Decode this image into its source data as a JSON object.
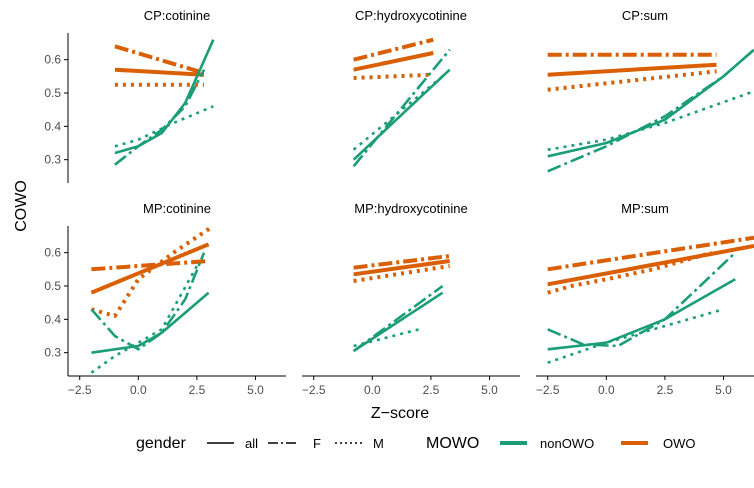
{
  "colors": {
    "nonOWO": "#1b9e77",
    "OWO": "#d95f02",
    "axis": "#000000",
    "tick_text": "#4d4d4d"
  },
  "chart_data": {
    "type": "line",
    "xlabel": "Z−score",
    "ylabel": "COWO",
    "xlim": [
      -3.0,
      6.3
    ],
    "ylim": [
      0.23,
      0.68
    ],
    "x_ticks": [
      -2.5,
      0.0,
      2.5,
      5.0
    ],
    "x_tick_labels": [
      "−2.5",
      "0.0",
      "2.5",
      "5.0"
    ],
    "y_ticks": [
      0.3,
      0.4,
      0.5,
      0.6
    ],
    "y_tick_labels": [
      "0.3",
      "0.4",
      "0.5",
      "0.6"
    ],
    "grid": false,
    "legend": {
      "placement": "bottom",
      "gender_title": "gender",
      "gender_items": [
        "all",
        "F",
        "M"
      ],
      "mowo_title": "MOWO",
      "mowo_items": [
        "nonOWO",
        "OWO"
      ]
    },
    "panels": [
      {
        "title": "CP:cotinine",
        "series": [
          {
            "group": "OWO",
            "gender": "all",
            "x": [
              -1.0,
              2.8
            ],
            "y": [
              0.57,
              0.555
            ]
          },
          {
            "group": "OWO",
            "gender": "F",
            "x": [
              -1.0,
              2.8
            ],
            "y": [
              0.64,
              0.56
            ]
          },
          {
            "group": "OWO",
            "gender": "M",
            "x": [
              -1.0,
              2.8
            ],
            "y": [
              0.525,
              0.525
            ]
          },
          {
            "group": "nonOWO",
            "gender": "all",
            "x": [
              -1.0,
              0.0,
              1.0,
              2.0,
              3.2
            ],
            "y": [
              0.32,
              0.34,
              0.38,
              0.47,
              0.66
            ]
          },
          {
            "group": "nonOWO",
            "gender": "F",
            "x": [
              -1.0,
              0.0,
              1.0,
              2.0,
              2.8
            ],
            "y": [
              0.285,
              0.34,
              0.39,
              0.46,
              0.57
            ]
          },
          {
            "group": "nonOWO",
            "gender": "M",
            "x": [
              -1.0,
              0.0,
              1.5,
              3.2
            ],
            "y": [
              0.34,
              0.36,
              0.41,
              0.46
            ]
          }
        ]
      },
      {
        "title": "CP:hydroxycotinine",
        "series": [
          {
            "group": "OWO",
            "gender": "all",
            "x": [
              -0.8,
              2.6
            ],
            "y": [
              0.57,
              0.62
            ]
          },
          {
            "group": "OWO",
            "gender": "F",
            "x": [
              -0.8,
              2.6
            ],
            "y": [
              0.6,
              0.66
            ]
          },
          {
            "group": "OWO",
            "gender": "M",
            "x": [
              -0.8,
              2.6
            ],
            "y": [
              0.545,
              0.555
            ]
          },
          {
            "group": "nonOWO",
            "gender": "all",
            "x": [
              -0.8,
              3.3
            ],
            "y": [
              0.3,
              0.57
            ]
          },
          {
            "group": "nonOWO",
            "gender": "F",
            "x": [
              -0.8,
              3.3
            ],
            "y": [
              0.28,
              0.63
            ]
          },
          {
            "group": "nonOWO",
            "gender": "M",
            "x": [
              -0.8,
              3.0
            ],
            "y": [
              0.33,
              0.55
            ]
          }
        ]
      },
      {
        "title": "CP:sum",
        "series": [
          {
            "group": "OWO",
            "gender": "all",
            "x": [
              -2.5,
              4.7
            ],
            "y": [
              0.555,
              0.585
            ]
          },
          {
            "group": "OWO",
            "gender": "F",
            "x": [
              -2.5,
              4.7
            ],
            "y": [
              0.615,
              0.615
            ]
          },
          {
            "group": "OWO",
            "gender": "M",
            "x": [
              -2.5,
              4.7
            ],
            "y": [
              0.51,
              0.565
            ]
          },
          {
            "group": "nonOWO",
            "gender": "all",
            "x": [
              -2.5,
              0.0,
              2.5,
              5.0,
              6.3
            ],
            "y": [
              0.31,
              0.35,
              0.42,
              0.55,
              0.63
            ]
          },
          {
            "group": "nonOWO",
            "gender": "F",
            "x": [
              -2.5,
              0.0,
              2.5,
              5.0,
              6.3
            ],
            "y": [
              0.265,
              0.34,
              0.43,
              0.55,
              0.63
            ]
          },
          {
            "group": "nonOWO",
            "gender": "M",
            "x": [
              -2.5,
              0.0,
              2.5,
              6.3
            ],
            "y": [
              0.33,
              0.36,
              0.41,
              0.505
            ]
          }
        ]
      },
      {
        "title": "MP:cotinine",
        "series": [
          {
            "group": "OWO",
            "gender": "all",
            "x": [
              -2.0,
              3.0
            ],
            "y": [
              0.48,
              0.625
            ]
          },
          {
            "group": "OWO",
            "gender": "F",
            "x": [
              -2.0,
              3.0
            ],
            "y": [
              0.55,
              0.575
            ]
          },
          {
            "group": "OWO",
            "gender": "M",
            "x": [
              -2.0,
              -1.0,
              0.0,
              1.5,
              3.2
            ],
            "y": [
              0.43,
              0.41,
              0.52,
              0.6,
              0.68
            ]
          },
          {
            "group": "nonOWO",
            "gender": "all",
            "x": [
              -2.0,
              0.0,
              1.0,
              2.0,
              3.0
            ],
            "y": [
              0.3,
              0.32,
              0.36,
              0.42,
              0.48
            ]
          },
          {
            "group": "nonOWO",
            "gender": "F",
            "x": [
              -2.0,
              -1.0,
              0.0,
              1.0,
              2.0,
              2.8
            ],
            "y": [
              0.43,
              0.35,
              0.31,
              0.36,
              0.46,
              0.6
            ]
          },
          {
            "group": "nonOWO",
            "gender": "M",
            "x": [
              -2.0,
              -1.0,
              0.0,
              1.0,
              2.5
            ],
            "y": [
              0.24,
              0.29,
              0.33,
              0.37,
              0.56
            ]
          }
        ]
      },
      {
        "title": "MP:hydroxycotinine",
        "series": [
          {
            "group": "OWO",
            "gender": "all",
            "x": [
              -0.8,
              3.3
            ],
            "y": [
              0.535,
              0.575
            ]
          },
          {
            "group": "OWO",
            "gender": "F",
            "x": [
              -0.8,
              3.3
            ],
            "y": [
              0.555,
              0.59
            ]
          },
          {
            "group": "OWO",
            "gender": "M",
            "x": [
              -0.8,
              3.3
            ],
            "y": [
              0.515,
              0.56
            ]
          },
          {
            "group": "nonOWO",
            "gender": "all",
            "x": [
              -0.8,
              3.0
            ],
            "y": [
              0.305,
              0.48
            ]
          },
          {
            "group": "nonOWO",
            "gender": "F",
            "x": [
              -0.8,
              3.0
            ],
            "y": [
              0.305,
              0.5
            ]
          },
          {
            "group": "nonOWO",
            "gender": "M",
            "x": [
              -0.8,
              2.0
            ],
            "y": [
              0.32,
              0.37
            ]
          }
        ]
      },
      {
        "title": "MP:sum",
        "series": [
          {
            "group": "OWO",
            "gender": "all",
            "x": [
              -2.5,
              6.3
            ],
            "y": [
              0.505,
              0.62
            ]
          },
          {
            "group": "OWO",
            "gender": "F",
            "x": [
              -2.5,
              6.3
            ],
            "y": [
              0.55,
              0.645
            ]
          },
          {
            "group": "OWO",
            "gender": "M",
            "x": [
              -2.5,
              -1.5,
              0.0,
              2.0,
              4.5
            ],
            "y": [
              0.48,
              0.5,
              0.52,
              0.55,
              0.6
            ]
          },
          {
            "group": "nonOWO",
            "gender": "all",
            "x": [
              -2.5,
              0.0,
              2.5,
              5.5
            ],
            "y": [
              0.31,
              0.33,
              0.4,
              0.52
            ]
          },
          {
            "group": "nonOWO",
            "gender": "F",
            "x": [
              -2.5,
              -1.0,
              0.5,
              2.5,
              5.5
            ],
            "y": [
              0.37,
              0.325,
              0.32,
              0.4,
              0.6
            ]
          },
          {
            "group": "nonOWO",
            "gender": "M",
            "x": [
              -2.5,
              0.0,
              2.5,
              5.0
            ],
            "y": [
              0.27,
              0.33,
              0.38,
              0.43
            ]
          }
        ]
      }
    ]
  }
}
